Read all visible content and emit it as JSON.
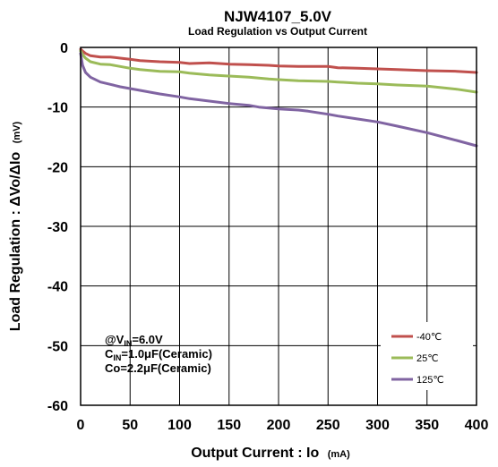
{
  "chart_data": {
    "type": "line",
    "title": "NJW4107_5.0V",
    "subtitle": "Load Regulation vs Output Current",
    "xlabel": "Output Current : Io",
    "xlabel_unit": "(mA)",
    "ylabel": "Load Regulation : ΔVo/ΔIo",
    "ylabel_unit": "(mV)",
    "xlim": [
      0,
      400
    ],
    "ylim": [
      -60,
      0
    ],
    "xticks": [
      "0",
      "50",
      "100",
      "150",
      "200",
      "250",
      "300",
      "350",
      "400"
    ],
    "yticks": [
      "0",
      "-10",
      "-20",
      "-30",
      "-40",
      "-50",
      "-60"
    ],
    "grid": true,
    "legend_position": "bottom-right",
    "annotation": {
      "line1_prefix": "@V",
      "line1_sub": "IN",
      "line1_suffix": "=6.0V",
      "line2_prefix": "C",
      "line2_sub": "IN",
      "line2_suffix": "=1.0μF(Ceramic)",
      "line3": "Co=2.2μF(Ceramic)"
    },
    "series": [
      {
        "name": "-40℃",
        "color": "#c0504d",
        "x": [
          0,
          2,
          5,
          10,
          20,
          30,
          40,
          50,
          60,
          80,
          100,
          110,
          130,
          150,
          170,
          190,
          200,
          220,
          250,
          260,
          280,
          300,
          320,
          350,
          380,
          400
        ],
        "y": [
          -0.3,
          -0.6,
          -1.0,
          -1.4,
          -1.6,
          -1.6,
          -1.8,
          -2.0,
          -2.2,
          -2.4,
          -2.5,
          -2.7,
          -2.6,
          -2.8,
          -2.9,
          -3.0,
          -3.1,
          -3.2,
          -3.2,
          -3.4,
          -3.5,
          -3.6,
          -3.7,
          -3.9,
          -4.0,
          -4.2
        ]
      },
      {
        "name": "25℃",
        "color": "#9bbb59",
        "x": [
          0,
          2,
          5,
          10,
          20,
          30,
          40,
          50,
          60,
          80,
          100,
          110,
          130,
          150,
          170,
          190,
          200,
          220,
          250,
          260,
          280,
          300,
          320,
          350,
          380,
          400
        ],
        "y": [
          -0.6,
          -1.2,
          -1.8,
          -2.4,
          -2.8,
          -2.9,
          -3.2,
          -3.5,
          -3.7,
          -4.0,
          -4.1,
          -4.3,
          -4.6,
          -4.8,
          -5.0,
          -5.3,
          -5.4,
          -5.6,
          -5.7,
          -5.8,
          -6.0,
          -6.1,
          -6.3,
          -6.5,
          -7.0,
          -7.5
        ]
      },
      {
        "name": "125℃",
        "color": "#8064a2",
        "x": [
          0,
          2,
          5,
          10,
          20,
          30,
          40,
          50,
          60,
          80,
          100,
          110,
          130,
          150,
          170,
          180,
          200,
          220,
          230,
          250,
          260,
          280,
          300,
          320,
          350,
          380,
          400
        ],
        "y": [
          -1.0,
          -3.0,
          -4.2,
          -5.0,
          -5.8,
          -6.2,
          -6.6,
          -6.9,
          -7.2,
          -7.8,
          -8.3,
          -8.6,
          -9.0,
          -9.4,
          -9.7,
          -10.0,
          -10.3,
          -10.5,
          -10.7,
          -11.2,
          -11.5,
          -12.0,
          -12.5,
          -13.2,
          -14.3,
          -15.6,
          -16.5
        ]
      }
    ]
  }
}
